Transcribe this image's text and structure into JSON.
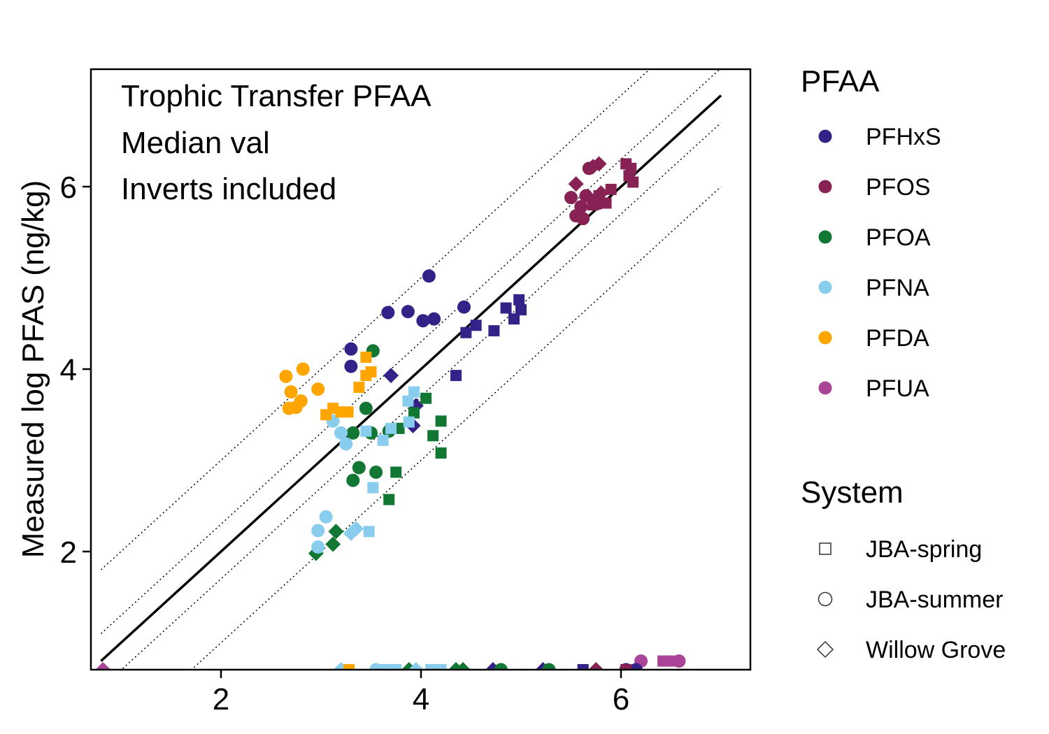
{
  "chart_data": {
    "type": "scatter",
    "title": "",
    "annotations": [
      "Trophic Transfer PFAA",
      "Median val",
      "Inverts included"
    ],
    "xlabel": "",
    "ylabel": "Measured log PFAS (ng/kg)",
    "xlim": [
      0.8,
      7.3
    ],
    "ylim": [
      0.8,
      7.3
    ],
    "x_ticks": [
      2,
      4,
      6
    ],
    "y_ticks": [
      2,
      4,
      6
    ],
    "grid": false,
    "reference_lines": [
      {
        "style": "solid",
        "offset": 0
      },
      {
        "style": "dotted",
        "offset": 1
      },
      {
        "style": "dotted",
        "offset": 0.3
      },
      {
        "style": "dotted",
        "offset": -0.3
      },
      {
        "style": "dotted",
        "offset": -1
      }
    ],
    "legend_color": {
      "title": "PFAA",
      "placement": "right",
      "entries": [
        {
          "name": "PFHxS",
          "color": "#332288"
        },
        {
          "name": "PFOS",
          "color": "#882255"
        },
        {
          "name": "PFOA",
          "color": "#117733"
        },
        {
          "name": "PFNA",
          "color": "#88CCEE"
        },
        {
          "name": "PFDA",
          "color": "#FFA500"
        },
        {
          "name": "PFUA",
          "color": "#AA4499"
        }
      ]
    },
    "legend_shape": {
      "title": "System",
      "placement": "right",
      "entries": [
        {
          "name": "JBA-spring",
          "shape": "square"
        },
        {
          "name": "JBA-summer",
          "shape": "circle"
        },
        {
          "name": "Willow Grove",
          "shape": "diamond"
        }
      ]
    },
    "series": [
      {
        "compound": "PFHxS",
        "system": "JBA-summer",
        "points": [
          [
            3.3,
            4.22
          ],
          [
            3.3,
            4.03
          ],
          [
            3.67,
            4.62
          ],
          [
            3.87,
            4.63
          ],
          [
            4.02,
            4.53
          ],
          [
            4.13,
            4.55
          ],
          [
            4.08,
            5.02
          ],
          [
            4.43,
            4.68
          ]
        ]
      },
      {
        "compound": "PFHxS",
        "system": "JBA-spring",
        "points": [
          [
            4.35,
            3.93
          ],
          [
            4.45,
            4.4
          ],
          [
            4.55,
            4.48
          ],
          [
            4.73,
            4.42
          ],
          [
            4.85,
            4.67
          ],
          [
            4.93,
            4.55
          ],
          [
            4.98,
            4.76
          ],
          [
            5.0,
            4.65
          ]
        ]
      },
      {
        "compound": "PFHxS",
        "system": "Willow Grove",
        "points": [
          [
            3.7,
            3.93
          ],
          [
            3.95,
            3.6
          ],
          [
            3.92,
            3.38
          ]
        ]
      },
      {
        "compound": "PFOS",
        "system": "JBA-summer",
        "points": [
          [
            5.5,
            5.88
          ],
          [
            5.55,
            5.68
          ],
          [
            5.62,
            5.65
          ],
          [
            5.6,
            5.78
          ],
          [
            5.65,
            5.9
          ],
          [
            5.68,
            6.2
          ],
          [
            5.72,
            5.85
          ],
          [
            5.78,
            5.82
          ]
        ]
      },
      {
        "compound": "PFOS",
        "system": "JBA-spring",
        "points": [
          [
            5.72,
            5.8
          ],
          [
            5.85,
            5.82
          ],
          [
            5.9,
            5.97
          ],
          [
            6.05,
            6.25
          ],
          [
            6.1,
            6.2
          ],
          [
            6.12,
            6.05
          ],
          [
            6.08,
            6.12
          ],
          [
            5.78,
            5.9
          ]
        ]
      },
      {
        "compound": "PFOS",
        "system": "Willow Grove",
        "points": [
          [
            5.55,
            6.03
          ],
          [
            5.72,
            6.22
          ],
          [
            5.78,
            6.25
          ],
          [
            5.8,
            5.93
          ]
        ]
      },
      {
        "compound": "PFOA",
        "system": "JBA-summer",
        "points": [
          [
            3.52,
            4.2
          ],
          [
            3.45,
            3.57
          ],
          [
            3.32,
            3.3
          ],
          [
            3.5,
            3.3
          ],
          [
            3.68,
            3.32
          ],
          [
            3.38,
            2.92
          ],
          [
            3.32,
            2.78
          ],
          [
            3.55,
            2.87
          ]
        ]
      },
      {
        "compound": "PFOA",
        "system": "JBA-spring",
        "points": [
          [
            3.78,
            3.35
          ],
          [
            3.93,
            3.52
          ],
          [
            4.05,
            3.68
          ],
          [
            4.2,
            3.43
          ],
          [
            4.12,
            3.27
          ],
          [
            4.2,
            3.08
          ],
          [
            3.75,
            2.87
          ],
          [
            3.68,
            2.57
          ]
        ]
      },
      {
        "compound": "PFOA",
        "system": "Willow Grove",
        "points": [
          [
            3.15,
            2.22
          ],
          [
            3.12,
            2.08
          ],
          [
            2.95,
            1.98
          ]
        ]
      },
      {
        "compound": "PFNA",
        "system": "JBA-summer",
        "points": [
          [
            3.12,
            3.43
          ],
          [
            3.2,
            3.3
          ],
          [
            3.25,
            3.18
          ],
          [
            3.05,
            2.38
          ],
          [
            2.97,
            2.23
          ],
          [
            2.97,
            2.05
          ]
        ]
      },
      {
        "compound": "PFNA",
        "system": "JBA-spring",
        "points": [
          [
            3.45,
            3.32
          ],
          [
            3.62,
            3.22
          ],
          [
            3.7,
            3.35
          ],
          [
            3.87,
            3.65
          ],
          [
            3.93,
            3.75
          ],
          [
            3.88,
            3.42
          ],
          [
            3.52,
            2.7
          ],
          [
            3.48,
            2.22
          ]
        ]
      },
      {
        "compound": "PFNA",
        "system": "Willow Grove",
        "points": [
          [
            3.35,
            2.25
          ],
          [
            3.3,
            2.2
          ]
        ]
      },
      {
        "compound": "PFDA",
        "system": "JBA-summer",
        "points": [
          [
            2.65,
            3.92
          ],
          [
            2.82,
            4.0
          ],
          [
            2.7,
            3.75
          ],
          [
            2.8,
            3.65
          ],
          [
            2.68,
            3.57
          ],
          [
            2.75,
            3.58
          ],
          [
            2.97,
            3.78
          ]
        ]
      },
      {
        "compound": "PFDA",
        "system": "JBA-spring",
        "points": [
          [
            3.05,
            3.5
          ],
          [
            3.12,
            3.57
          ],
          [
            3.2,
            3.53
          ],
          [
            3.27,
            3.53
          ],
          [
            3.38,
            3.8
          ],
          [
            3.45,
            3.93
          ],
          [
            3.45,
            4.13
          ],
          [
            3.5,
            3.97
          ]
        ]
      },
      {
        "compound": "PFUA",
        "system": "JBA-summer",
        "points": [
          [
            6.2,
            0.8
          ],
          [
            6.58,
            0.8
          ]
        ]
      },
      {
        "compound": "PFUA",
        "system": "JBA-spring",
        "points": [
          [
            6.5,
            0.8
          ],
          [
            6.42,
            0.8
          ]
        ]
      }
    ],
    "axis_points": [
      {
        "compound": "PFUA",
        "system": "Willow Grove",
        "x": 0.82
      },
      {
        "compound": "PFNA",
        "system": "Willow Grove",
        "x": 3.2
      },
      {
        "compound": "PFDA",
        "system": "JBA-spring",
        "x": 3.28
      },
      {
        "compound": "PFNA",
        "system": "JBA-summer",
        "x": 3.55
      },
      {
        "compound": "PFNA",
        "system": "JBA-spring",
        "x": 3.65
      },
      {
        "compound": "PFNA",
        "system": "JBA-spring",
        "x": 3.75
      },
      {
        "compound": "PFOA",
        "system": "Willow Grove",
        "x": 3.88
      },
      {
        "compound": "PFNA",
        "system": "Willow Grove",
        "x": 3.95
      },
      {
        "compound": "PFNA",
        "system": "JBA-spring",
        "x": 4.1
      },
      {
        "compound": "PFNA",
        "system": "JBA-spring",
        "x": 4.2
      },
      {
        "compound": "PFOA",
        "system": "Willow Grove",
        "x": 4.35
      },
      {
        "compound": "PFOA",
        "system": "Willow Grove",
        "x": 4.42
      },
      {
        "compound": "PFHxS",
        "system": "Willow Grove",
        "x": 4.72
      },
      {
        "compound": "PFOA",
        "system": "JBA-summer",
        "x": 4.8
      },
      {
        "compound": "PFHxS",
        "system": "Willow Grove",
        "x": 5.22
      },
      {
        "compound": "PFOA",
        "system": "JBA-summer",
        "x": 5.28
      },
      {
        "compound": "PFHxS",
        "system": "JBA-spring",
        "x": 5.62
      },
      {
        "compound": "PFOS",
        "system": "Willow Grove",
        "x": 5.75
      },
      {
        "compound": "PFHxS",
        "system": "JBA-summer",
        "x": 6.05
      },
      {
        "compound": "PFHxS",
        "system": "JBA-summer",
        "x": 6.15
      },
      {
        "compound": "PFOS",
        "system": "JBA-spring",
        "x": 6.05
      }
    ]
  }
}
